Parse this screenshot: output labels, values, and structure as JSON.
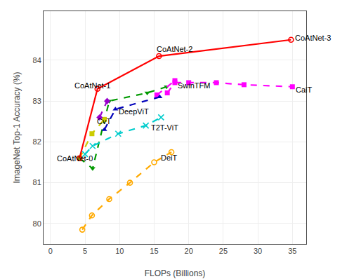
{
  "chart_data": {
    "type": "line",
    "xlabel": "FLOPs (Billions)",
    "ylabel": "ImageNet Top-1 Accuracy (%)",
    "xlim": [
      -1,
      37
    ],
    "ylim": [
      79.5,
      85.2
    ],
    "xticks": [
      0,
      5,
      10,
      15,
      20,
      25,
      30,
      35
    ],
    "yticks": [
      80,
      81,
      82,
      83,
      84
    ],
    "grid": true,
    "series": [
      {
        "color": "#009900",
        "marker": "triangle-down",
        "line_style": "dashed",
        "x": [
          4.2,
          6.1,
          8.5,
          14.0,
          16.8
        ],
        "values": [
          81.6,
          81.35,
          83.0,
          83.2,
          83.35
        ]
      },
      {
        "color": "#cccc00",
        "marker": "square",
        "line_style": "dashed",
        "x": [
          4.2,
          6.0,
          7.8
        ],
        "values": [
          81.6,
          82.2,
          82.55
        ]
      },
      {
        "color": "#ffaa00",
        "marker": "circle-open",
        "line_style": "dashed",
        "x": [
          4.6,
          6.0,
          8.5,
          11.5,
          15.0,
          17.5
        ],
        "values": [
          79.85,
          80.2,
          80.6,
          81.0,
          81.5,
          81.75
        ]
      },
      {
        "color": "#00cccc",
        "marker": "x",
        "line_style": "dashed",
        "x": [
          5.0,
          6.1,
          9.8,
          13.8,
          16.0
        ],
        "values": [
          81.7,
          81.9,
          82.2,
          82.4,
          82.6
        ]
      },
      {
        "color": "#ff00ff",
        "marker": "square",
        "line_style": "dashed",
        "x": [
          16.9,
          18.0,
          20.0,
          24.0,
          28.0,
          35.0
        ],
        "values": [
          83.2,
          83.45,
          83.45,
          83.45,
          83.4,
          83.35
        ]
      },
      {
        "color": "#ff00ff",
        "marker": "square",
        "line_style": "dashed",
        "x": [
          15.4,
          18.0
        ],
        "values": [
          83.15,
          83.5
        ]
      },
      {
        "color": "#0000bb",
        "marker": "triangle-up",
        "line_style": "dashed",
        "x": [
          7.8,
          9.4,
          15.8
        ],
        "values": [
          82.3,
          82.8,
          83.1
        ]
      },
      {
        "color": "#9900cc",
        "marker": "diamond",
        "line_style": "dashed",
        "x": [
          7.1,
          8.2
        ],
        "values": [
          82.6,
          83.0
        ]
      },
      {
        "color": "#ff0000",
        "marker": "circle-open",
        "line_style": "solid",
        "x": [
          4.2,
          6.8,
          15.7,
          34.8
        ],
        "values": [
          81.6,
          83.3,
          84.1,
          84.5
        ]
      }
    ],
    "annotations": [
      {
        "text": "DeiT",
        "x": 15.8,
        "y": 81.62
      },
      {
        "text": "T2T-ViT",
        "x": 14.3,
        "y": 82.35
      },
      {
        "text": "CaiT",
        "x": 35.3,
        "y": 83.27
      },
      {
        "text": "SwinTFM",
        "x": 18.2,
        "y": 83.38
      },
      {
        "text": "DeepViT",
        "x": 9.7,
        "y": 82.75
      },
      {
        "text": "CvT",
        "x": 6.5,
        "y": 82.5
      },
      {
        "text": "CoAtNet-0",
        "x": 0.7,
        "y": 81.6
      },
      {
        "text": "CoAtNet-1",
        "x": 3.3,
        "y": 83.38
      },
      {
        "text": "CoAtNet-2",
        "x": 15.2,
        "y": 84.28
      },
      {
        "text": "CoAtNet-3",
        "x": 35.15,
        "y": 84.55
      }
    ]
  }
}
